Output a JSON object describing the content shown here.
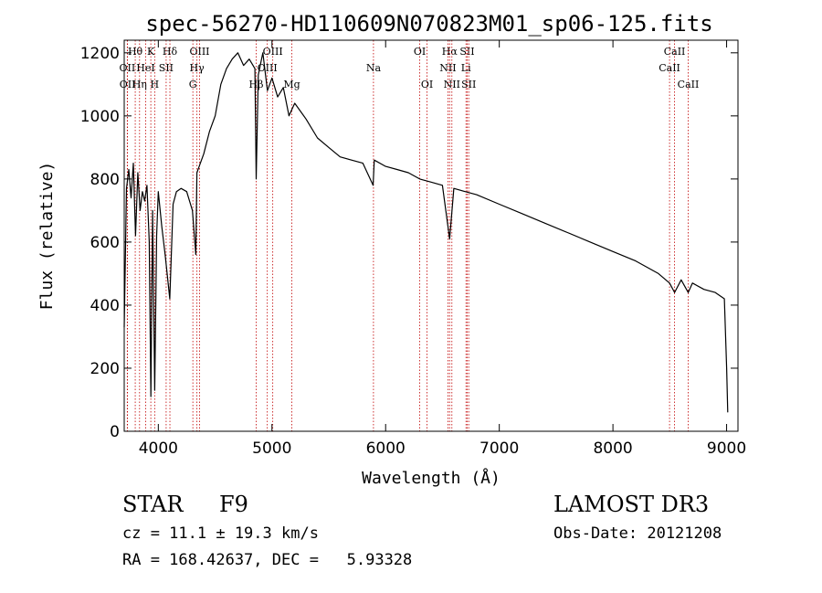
{
  "chart_data": {
    "type": "line",
    "title": "spec-56270-HD110609N070823M01_sp06-125.fits",
    "xlabel": "Wavelength (Å)",
    "ylabel": "Flux (relative)",
    "xlim": [
      3700,
      9100
    ],
    "ylim": [
      0,
      1240
    ],
    "x_ticks": [
      4000,
      5000,
      6000,
      7000,
      8000,
      9000
    ],
    "y_ticks": [
      0,
      200,
      400,
      600,
      800,
      1000,
      1200
    ],
    "line_color": "#000000",
    "marker_color": "#c00000",
    "series": [
      {
        "name": "flux",
        "x": [
          3700,
          3720,
          3740,
          3760,
          3780,
          3800,
          3820,
          3840,
          3860,
          3880,
          3900,
          3920,
          3935,
          3950,
          3968,
          3985,
          4000,
          4030,
          4060,
          4101,
          4130,
          4160,
          4200,
          4250,
          4300,
          4330,
          4340,
          4360,
          4400,
          4450,
          4500,
          4550,
          4600,
          4650,
          4700,
          4750,
          4800,
          4850,
          4861,
          4880,
          4920,
          4960,
          5000,
          5050,
          5100,
          5150,
          5200,
          5300,
          5400,
          5500,
          5600,
          5700,
          5800,
          5890,
          5900,
          6000,
          6100,
          6200,
          6300,
          6400,
          6500,
          6563,
          6600,
          6700,
          6800,
          7000,
          7200,
          7400,
          7600,
          7800,
          8000,
          8200,
          8400,
          8498,
          8542,
          8600,
          8662,
          8700,
          8800,
          8900,
          8980,
          9000,
          9010
        ],
        "y": [
          330,
          770,
          830,
          740,
          850,
          620,
          820,
          700,
          760,
          730,
          780,
          600,
          110,
          700,
          130,
          620,
          760,
          650,
          560,
          420,
          720,
          760,
          770,
          760,
          700,
          560,
          820,
          840,
          880,
          950,
          1000,
          1100,
          1150,
          1180,
          1200,
          1160,
          1180,
          1150,
          800,
          1130,
          1200,
          1080,
          1120,
          1060,
          1090,
          1000,
          1040,
          990,
          930,
          900,
          870,
          860,
          850,
          780,
          860,
          840,
          830,
          820,
          800,
          790,
          780,
          610,
          770,
          760,
          750,
          720,
          690,
          660,
          630,
          600,
          570,
          540,
          500,
          470,
          440,
          480,
          440,
          470,
          450,
          440,
          420,
          200,
          60
        ]
      }
    ],
    "line_markers": {
      "top": [
        {
          "label": "Hθ",
          "x": 3797
        },
        {
          "label": "K",
          "x": 3934
        },
        {
          "label": "Hδ",
          "x": 4102
        },
        {
          "label": "OIII",
          "x": 4363
        },
        {
          "label": "OIII",
          "x": 5007
        },
        {
          "label": "OI",
          "x": 6300
        },
        {
          "label": "Hα",
          "x": 6563
        },
        {
          "label": "SII",
          "x": 6717
        },
        {
          "label": "CaII",
          "x": 8542
        }
      ],
      "middle": [
        {
          "label": "OII",
          "x": 3727
        },
        {
          "label": "HeI",
          "x": 3889
        },
        {
          "label": "SII",
          "x": 4069
        },
        {
          "label": "Hγ",
          "x": 4340
        },
        {
          "label": "OIII",
          "x": 4959
        },
        {
          "label": "Na",
          "x": 5893
        },
        {
          "label": "NII",
          "x": 6548
        },
        {
          "label": "Li",
          "x": 6707
        },
        {
          "label": "CaII",
          "x": 8498
        }
      ],
      "bottom": [
        {
          "label": "OII",
          "x": 3729
        },
        {
          "label": "Hη",
          "x": 3835
        },
        {
          "label": "H",
          "x": 3968
        },
        {
          "label": "G",
          "x": 4304
        },
        {
          "label": "Hβ",
          "x": 4861
        },
        {
          "label": "Mg",
          "x": 5175
        },
        {
          "label": "OI",
          "x": 6364
        },
        {
          "label": "NII",
          "x": 6583
        },
        {
          "label": "SII",
          "x": 6731
        },
        {
          "label": "CaII",
          "x": 8662
        }
      ]
    }
  },
  "info": {
    "object_class": "STAR",
    "subclass": "F9",
    "survey": "LAMOST DR3",
    "redshift": "cz = 11.1 ± 19.3 km/s",
    "obs_date": "Obs-Date: 20121208",
    "coords": "RA = 168.42637, DEC =   5.93328"
  }
}
